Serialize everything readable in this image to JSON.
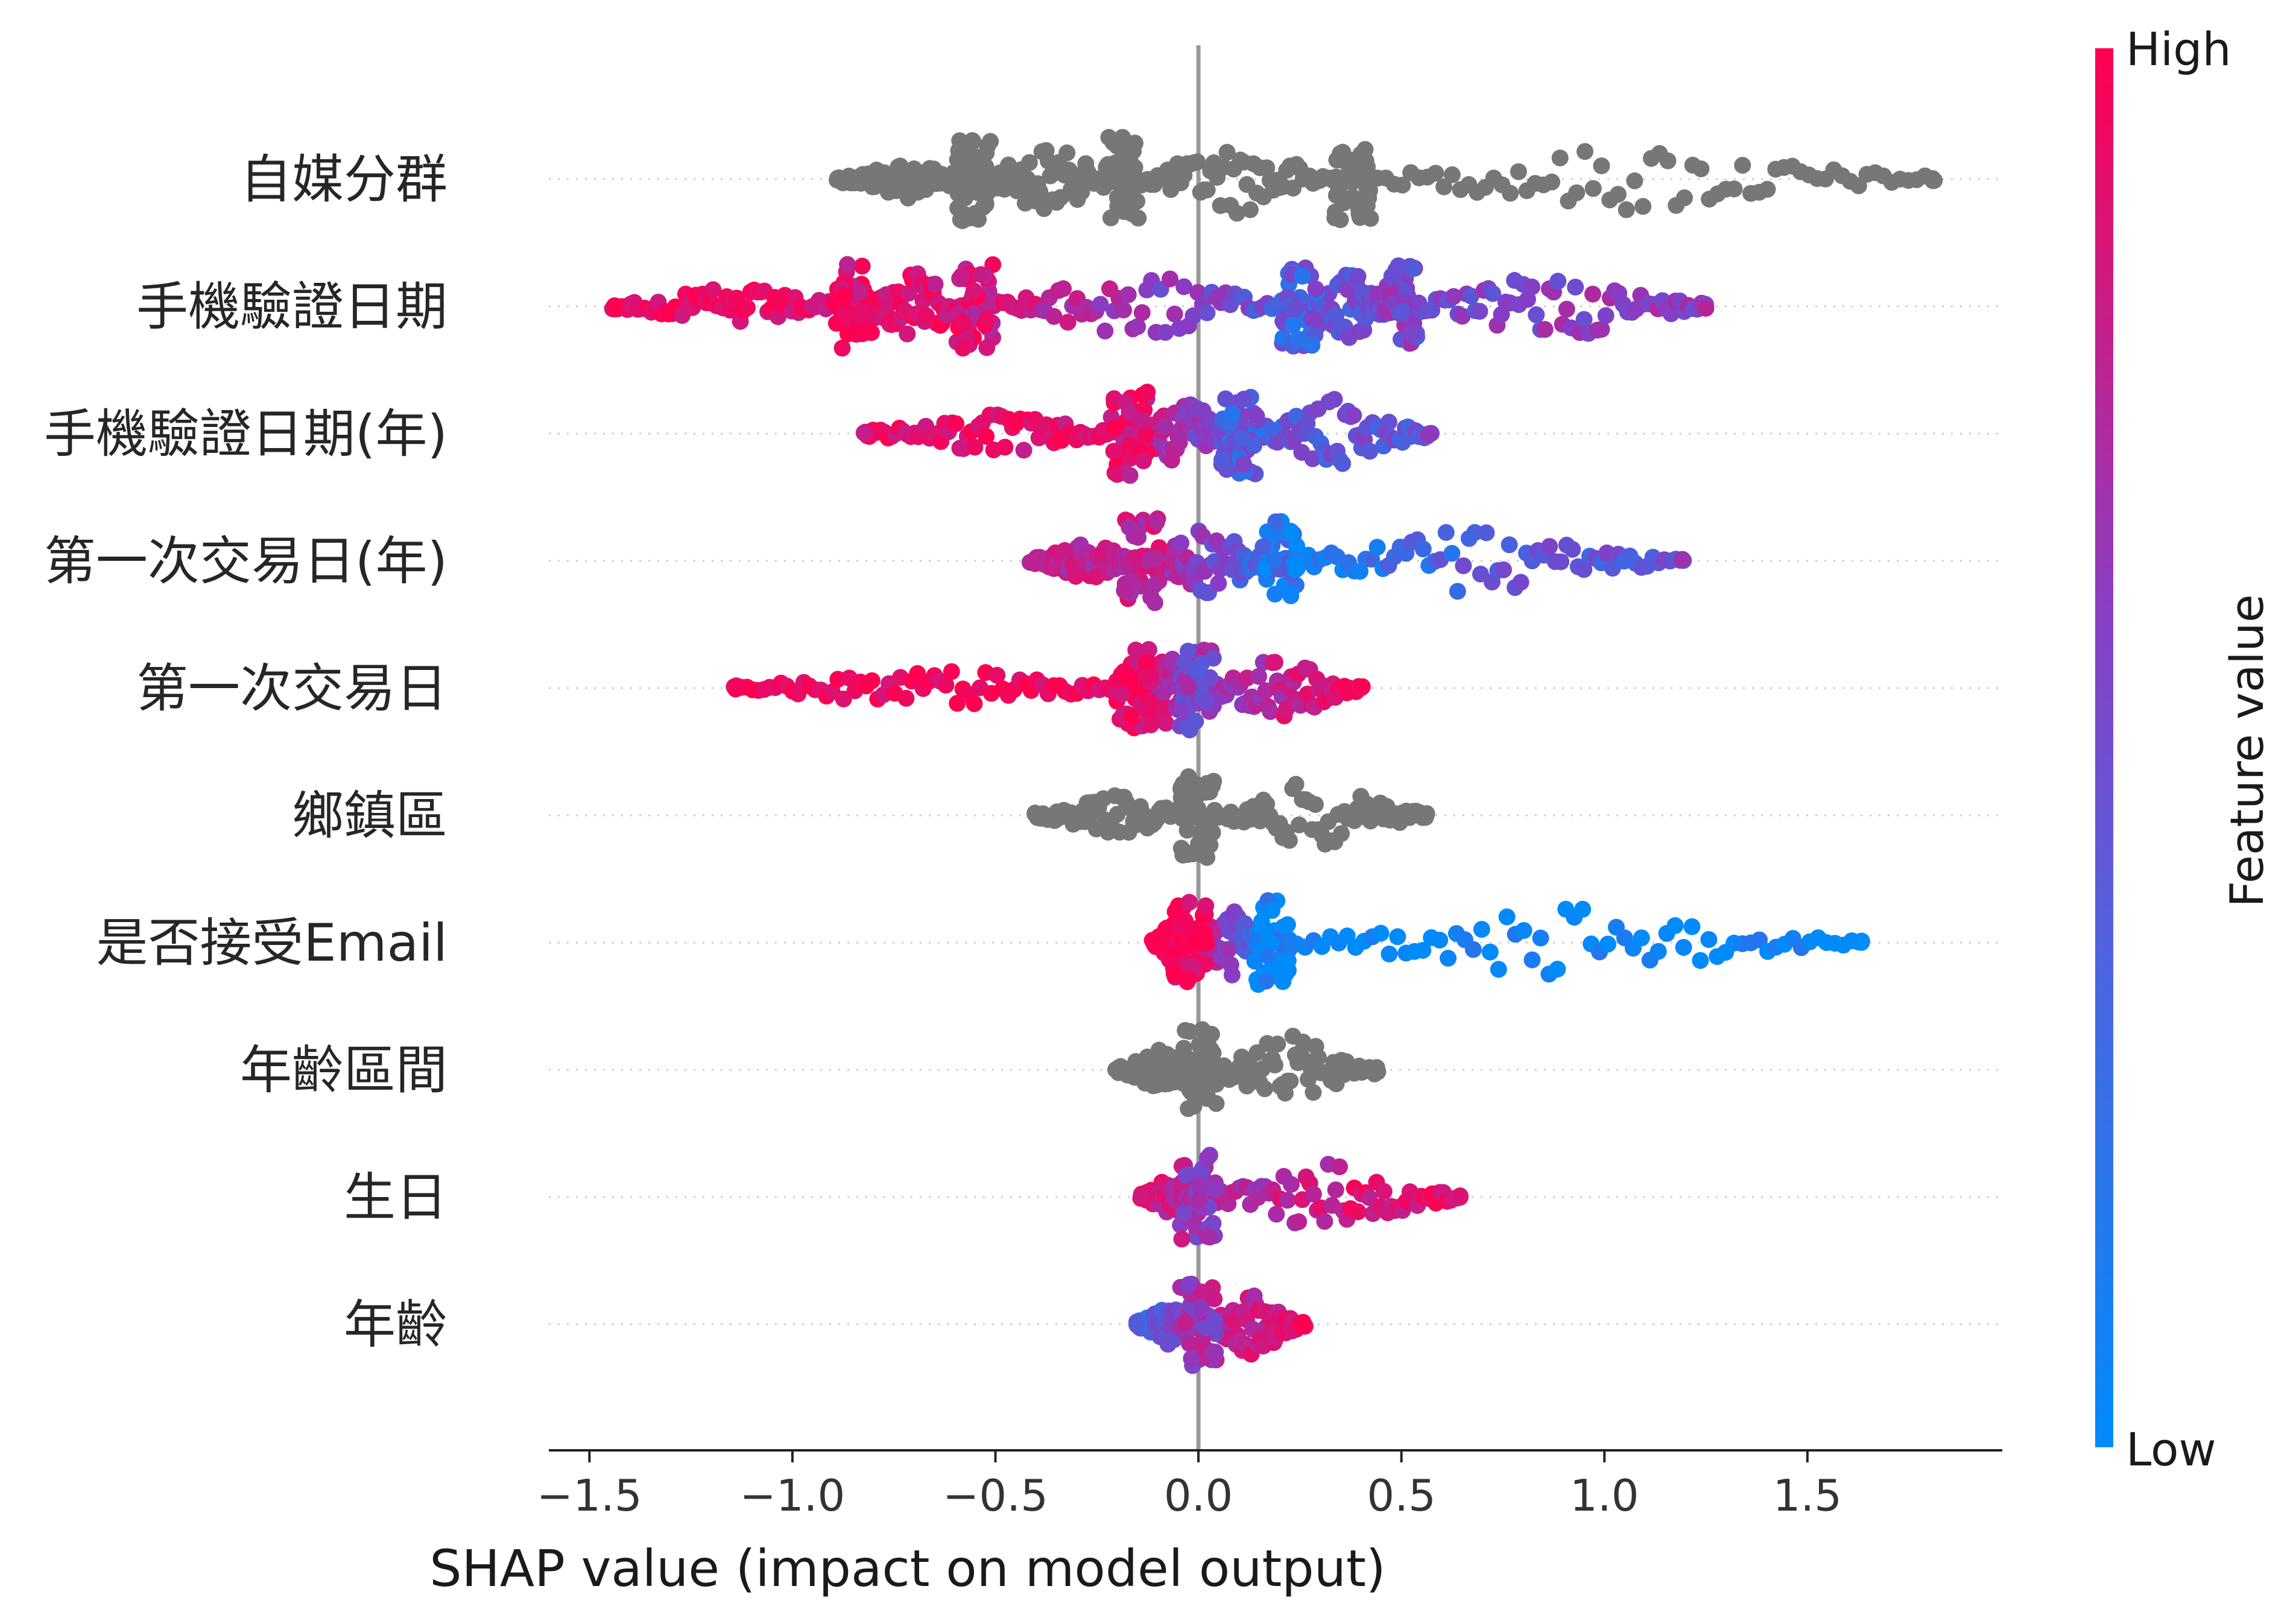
{
  "chart_data": {
    "type": "scatter",
    "subtype": "shap-beeswarm",
    "title": "",
    "xlabel": "SHAP value (impact on model output)",
    "ylabel": "",
    "xlim": [
      -1.6,
      1.98
    ],
    "xticks": [
      {
        "value": -1.5,
        "label": "−1.5"
      },
      {
        "value": -1.0,
        "label": "−1.0"
      },
      {
        "value": -0.5,
        "label": "−0.5"
      },
      {
        "value": 0.0,
        "label": "0.0"
      },
      {
        "value": 0.5,
        "label": "0.5"
      },
      {
        "value": 1.0,
        "label": "1.0"
      },
      {
        "value": 1.5,
        "label": "1.5"
      }
    ],
    "grid": false,
    "colorbar": {
      "title": "Feature value",
      "high_label": "High",
      "low_label": "Low",
      "high_color": "#ff0d57",
      "low_color": "#1e88e5",
      "no_value_color": "#777777"
    },
    "features": [
      {
        "name": "自媒分群",
        "min": -0.89,
        "max": 1.81,
        "has_value": false,
        "clusters": [
          {
            "x": -0.89,
            "y": -0.89,
            "color": 0.5
          },
          {
            "x": -0.55,
            "y": -0.55,
            "color": 0.5
          },
          {
            "x": -0.19,
            "y": -0.19,
            "color": 0.5
          },
          {
            "x": 0.38,
            "y": 0.38,
            "color": 0.5
          },
          {
            "x": 1.81,
            "y": 1.81,
            "color": 0.5
          }
        ]
      },
      {
        "name": "手機驗證日期",
        "min": -1.44,
        "max": 1.25,
        "has_value": true,
        "clusters": [
          {
            "x": -1.44,
            "color": 0.95
          },
          {
            "x": -0.85,
            "color": 0.9
          },
          {
            "x": -0.55,
            "color": 0.85
          },
          {
            "x": 0.25,
            "color": 0.3
          },
          {
            "x": 0.5,
            "color": 0.45
          },
          {
            "x": 1.25,
            "color": 0.55
          }
        ]
      },
      {
        "name": "手機驗證日期(年)",
        "min": -0.82,
        "max": 0.57,
        "has_value": true,
        "clusters": [
          {
            "x": -0.82,
            "color": 0.9
          },
          {
            "x": -0.17,
            "color": 0.85
          },
          {
            "x": 0.1,
            "color": 0.3
          },
          {
            "x": 0.57,
            "color": 0.4
          }
        ]
      },
      {
        "name": "第一次交易日(年)",
        "min": -0.41,
        "max": 1.19,
        "has_value": true,
        "clusters": [
          {
            "x": -0.41,
            "color": 0.7
          },
          {
            "x": -0.14,
            "color": 0.75
          },
          {
            "x": 0.2,
            "color": 0.15
          },
          {
            "x": 1.19,
            "color": 0.4
          }
        ]
      },
      {
        "name": "第一次交易日",
        "min": -1.14,
        "max": 0.4,
        "has_value": true,
        "clusters": [
          {
            "x": -1.14,
            "color": 0.95
          },
          {
            "x": -0.16,
            "color": 0.95
          },
          {
            "x": 0.0,
            "color": 0.5
          },
          {
            "x": 0.4,
            "color": 0.95
          }
        ]
      },
      {
        "name": "鄉鎮區",
        "min": -0.4,
        "max": 0.56,
        "has_value": false,
        "clusters": [
          {
            "x": -0.4,
            "color": 0.5
          },
          {
            "x": 0.0,
            "color": 0.5
          },
          {
            "x": 0.56,
            "color": 0.5
          }
        ]
      },
      {
        "name": "是否接受Email",
        "min": -0.11,
        "max": 1.63,
        "has_value": true,
        "clusters": [
          {
            "x": -0.11,
            "color": 1.0
          },
          {
            "x": -0.02,
            "color": 1.0
          },
          {
            "x": 0.18,
            "color": 0.0
          },
          {
            "x": 1.63,
            "color": 0.0
          }
        ]
      },
      {
        "name": "年齡區間",
        "min": -0.2,
        "max": 0.44,
        "has_value": false,
        "clusters": [
          {
            "x": -0.2,
            "color": 0.5
          },
          {
            "x": 0.0,
            "color": 0.5
          },
          {
            "x": 0.44,
            "color": 0.5
          }
        ]
      },
      {
        "name": "生日",
        "min": -0.14,
        "max": 0.64,
        "has_value": true,
        "clusters": [
          {
            "x": -0.14,
            "color": 0.95
          },
          {
            "x": 0.0,
            "color": 0.6
          },
          {
            "x": 0.64,
            "color": 0.95
          }
        ]
      },
      {
        "name": "年齡",
        "min": -0.15,
        "max": 0.26,
        "has_value": true,
        "clusters": [
          {
            "x": -0.15,
            "color": 0.2
          },
          {
            "x": 0.0,
            "color": 0.6
          },
          {
            "x": 0.26,
            "color": 0.9
          }
        ]
      }
    ]
  }
}
